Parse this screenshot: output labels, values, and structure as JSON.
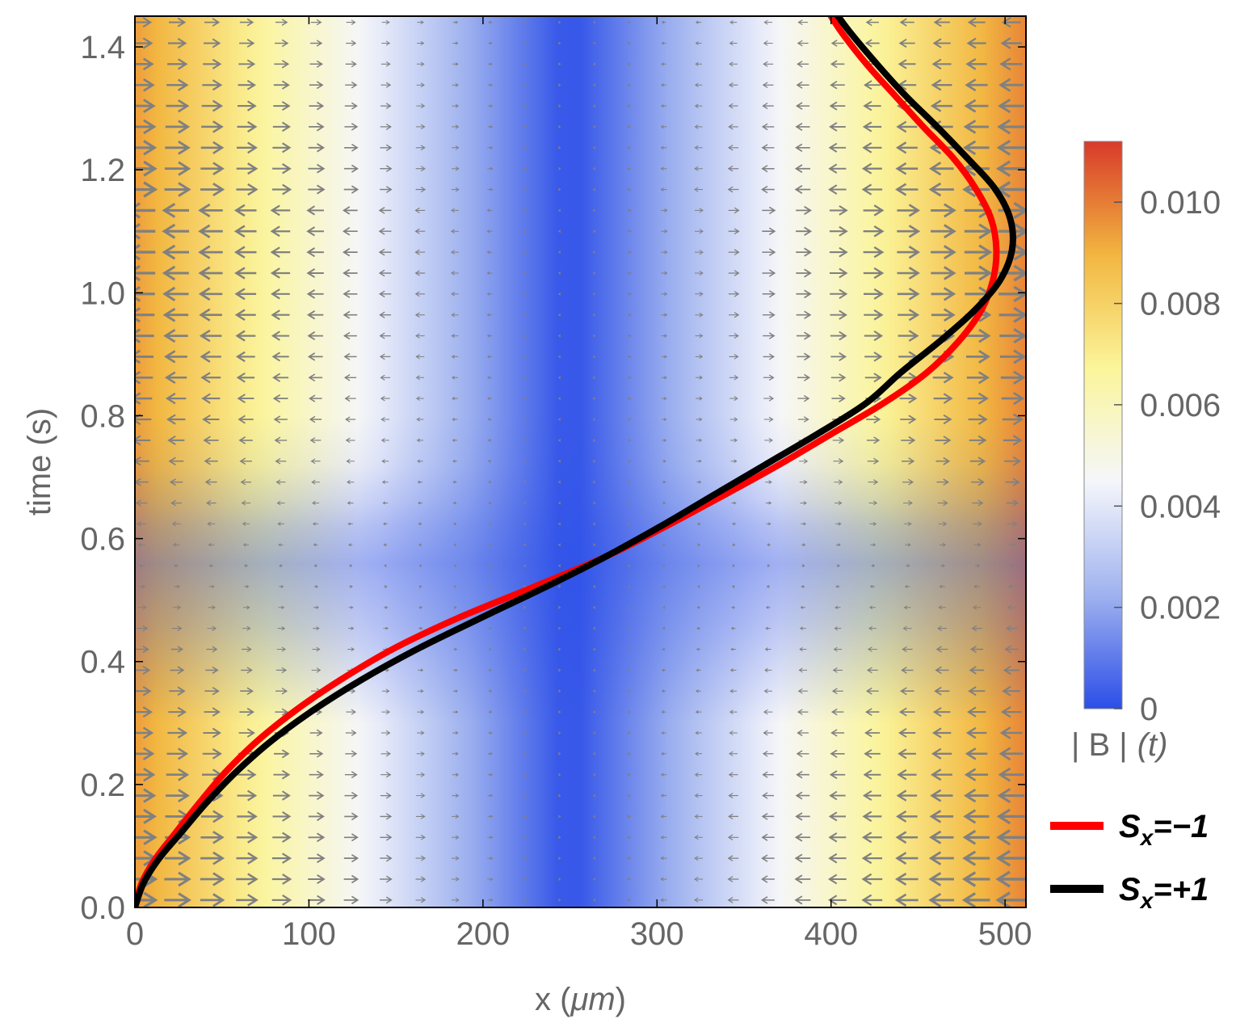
{
  "chart_data": {
    "type": "line",
    "xlabel_main": "x (",
    "xlabel_unit": "μm",
    "xlabel_close": ")",
    "ylabel": "time (s)",
    "xlim": [
      0,
      512
    ],
    "ylim": [
      0,
      1.45
    ],
    "x_ticks": [
      0,
      100,
      200,
      300,
      400,
      500
    ],
    "y_ticks": [
      0.0,
      0.2,
      0.4,
      0.6,
      0.8,
      1.0,
      1.2,
      1.4
    ],
    "x_tick_labels": [
      "0",
      "100",
      "200",
      "300",
      "400",
      "500"
    ],
    "y_tick_labels": [
      "0.0",
      "0.2",
      "0.4",
      "0.6",
      "0.8",
      "1.0",
      "1.2",
      "1.4"
    ],
    "background": {
      "type": "density_with_vector_field",
      "quantity": "|B|(t)",
      "center_x": 250,
      "arrow_color": "#808080"
    },
    "colorbar": {
      "label_main": "| B |",
      "label_arg": "(t)",
      "range": [
        0,
        0.0112
      ],
      "ticks": [
        0,
        0.002,
        0.004,
        0.006,
        0.008,
        0.01
      ],
      "tick_labels": [
        "0",
        "0.002",
        "0.004",
        "0.006",
        "0.008",
        "0.010"
      ],
      "colors": [
        "#2b4ee8",
        "#9fb2ef",
        "#f5f6fb",
        "#fbf59a",
        "#f2b640",
        "#d83a2a"
      ]
    },
    "legend_position": "bottom-right",
    "series": [
      {
        "name_sym": "S",
        "name_sub": "x",
        "name_val": "=−1",
        "color": "#ff0000",
        "points": [
          [
            0,
            0.0
          ],
          [
            4,
            0.04
          ],
          [
            12,
            0.08
          ],
          [
            23,
            0.12
          ],
          [
            37,
            0.17
          ],
          [
            52,
            0.22
          ],
          [
            70,
            0.27
          ],
          [
            92,
            0.32
          ],
          [
            118,
            0.37
          ],
          [
            148,
            0.42
          ],
          [
            185,
            0.47
          ],
          [
            228,
            0.52
          ],
          [
            270,
            0.57
          ],
          [
            305,
            0.62
          ],
          [
            338,
            0.67
          ],
          [
            370,
            0.72
          ],
          [
            400,
            0.77
          ],
          [
            430,
            0.82
          ],
          [
            455,
            0.87
          ],
          [
            473,
            0.92
          ],
          [
            486,
            0.97
          ],
          [
            493,
            1.02
          ],
          [
            495,
            1.07
          ],
          [
            492,
            1.12
          ],
          [
            483,
            1.17
          ],
          [
            470,
            1.22
          ],
          [
            453,
            1.27
          ],
          [
            437,
            1.32
          ],
          [
            421,
            1.37
          ],
          [
            407,
            1.42
          ],
          [
            400,
            1.45
          ]
        ]
      },
      {
        "name_sym": "S",
        "name_sub": "x",
        "name_val": "=+1",
        "color": "#000000",
        "points": [
          [
            0,
            0.0
          ],
          [
            5,
            0.04
          ],
          [
            14,
            0.08
          ],
          [
            26,
            0.12
          ],
          [
            41,
            0.17
          ],
          [
            58,
            0.22
          ],
          [
            78,
            0.27
          ],
          [
            102,
            0.32
          ],
          [
            130,
            0.37
          ],
          [
            162,
            0.42
          ],
          [
            198,
            0.47
          ],
          [
            235,
            0.52
          ],
          [
            270,
            0.57
          ],
          [
            302,
            0.62
          ],
          [
            332,
            0.67
          ],
          [
            362,
            0.72
          ],
          [
            392,
            0.77
          ],
          [
            420,
            0.82
          ],
          [
            440,
            0.87
          ],
          [
            462,
            0.92
          ],
          [
            482,
            0.97
          ],
          [
            497,
            1.02
          ],
          [
            504,
            1.07
          ],
          [
            503,
            1.12
          ],
          [
            494,
            1.17
          ],
          [
            478,
            1.22
          ],
          [
            461,
            1.27
          ],
          [
            443,
            1.32
          ],
          [
            427,
            1.37
          ],
          [
            412,
            1.42
          ],
          [
            404,
            1.45
          ]
        ]
      }
    ]
  }
}
